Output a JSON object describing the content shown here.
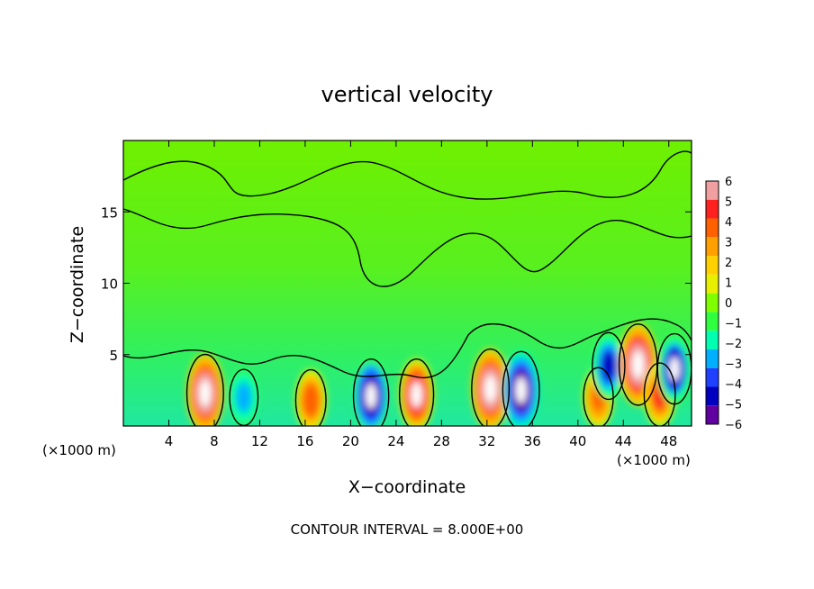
{
  "chart_data": {
    "type": "heatmap",
    "title": "vertical velocity",
    "xlabel": "X−coordinate",
    "ylabel": "Z−coordinate",
    "x_unit_left": "(×1000 m)",
    "x_unit_right": "(×1000 m)",
    "footer": "CONTOUR INTERVAL = 8.000E+00",
    "xlim": [
      0,
      50
    ],
    "ylim": [
      0,
      20
    ],
    "x_ticks": [
      4,
      8,
      12,
      16,
      20,
      24,
      28,
      32,
      36,
      40,
      44,
      48
    ],
    "y_ticks": [
      5,
      10,
      15
    ],
    "colorbar": {
      "levels": [
        6,
        5,
        4,
        3,
        2,
        1,
        0,
        -1,
        -2,
        -3,
        -4,
        -5,
        -6
      ],
      "labels": [
        "6",
        "5",
        "4",
        "3",
        "2",
        "1",
        "0",
        "−1",
        "−2",
        "−3",
        "−4",
        "−5",
        "−6"
      ],
      "colors": [
        "#f0a0a0",
        "#ff2020",
        "#ff6000",
        "#ffa000",
        "#ffd000",
        "#e8f000",
        "#80ff00",
        "#30ff40",
        "#00ffb0",
        "#00b0ff",
        "#2040ff",
        "#0000c0",
        "#6000a0"
      ]
    },
    "features": [
      {
        "x": 7.2,
        "z": 2.3,
        "w": 6.5,
        "sign": "up"
      },
      {
        "x": 10.6,
        "z": 2.0,
        "w": -3.5,
        "sign": "down"
      },
      {
        "x": 16.5,
        "z": 1.8,
        "w": 4.2,
        "sign": "up"
      },
      {
        "x": 21.8,
        "z": 2.1,
        "w": -6.0,
        "sign": "down"
      },
      {
        "x": 25.8,
        "z": 2.2,
        "w": 5.6,
        "sign": "up"
      },
      {
        "x": 32.3,
        "z": 2.6,
        "w": 6.8,
        "sign": "up"
      },
      {
        "x": 35.0,
        "z": 2.5,
        "w": -6.5,
        "sign": "down"
      },
      {
        "x": 41.8,
        "z": 2.0,
        "w": 4.0,
        "sign": "up"
      },
      {
        "x": 42.7,
        "z": 4.2,
        "w": -5.0,
        "sign": "down"
      },
      {
        "x": 45.3,
        "z": 4.3,
        "w": 7.0,
        "sign": "up"
      },
      {
        "x": 47.2,
        "z": 2.2,
        "w": 4.5,
        "sign": "up"
      },
      {
        "x": 48.5,
        "z": 4.0,
        "w": -5.5,
        "sign": "down"
      }
    ]
  }
}
